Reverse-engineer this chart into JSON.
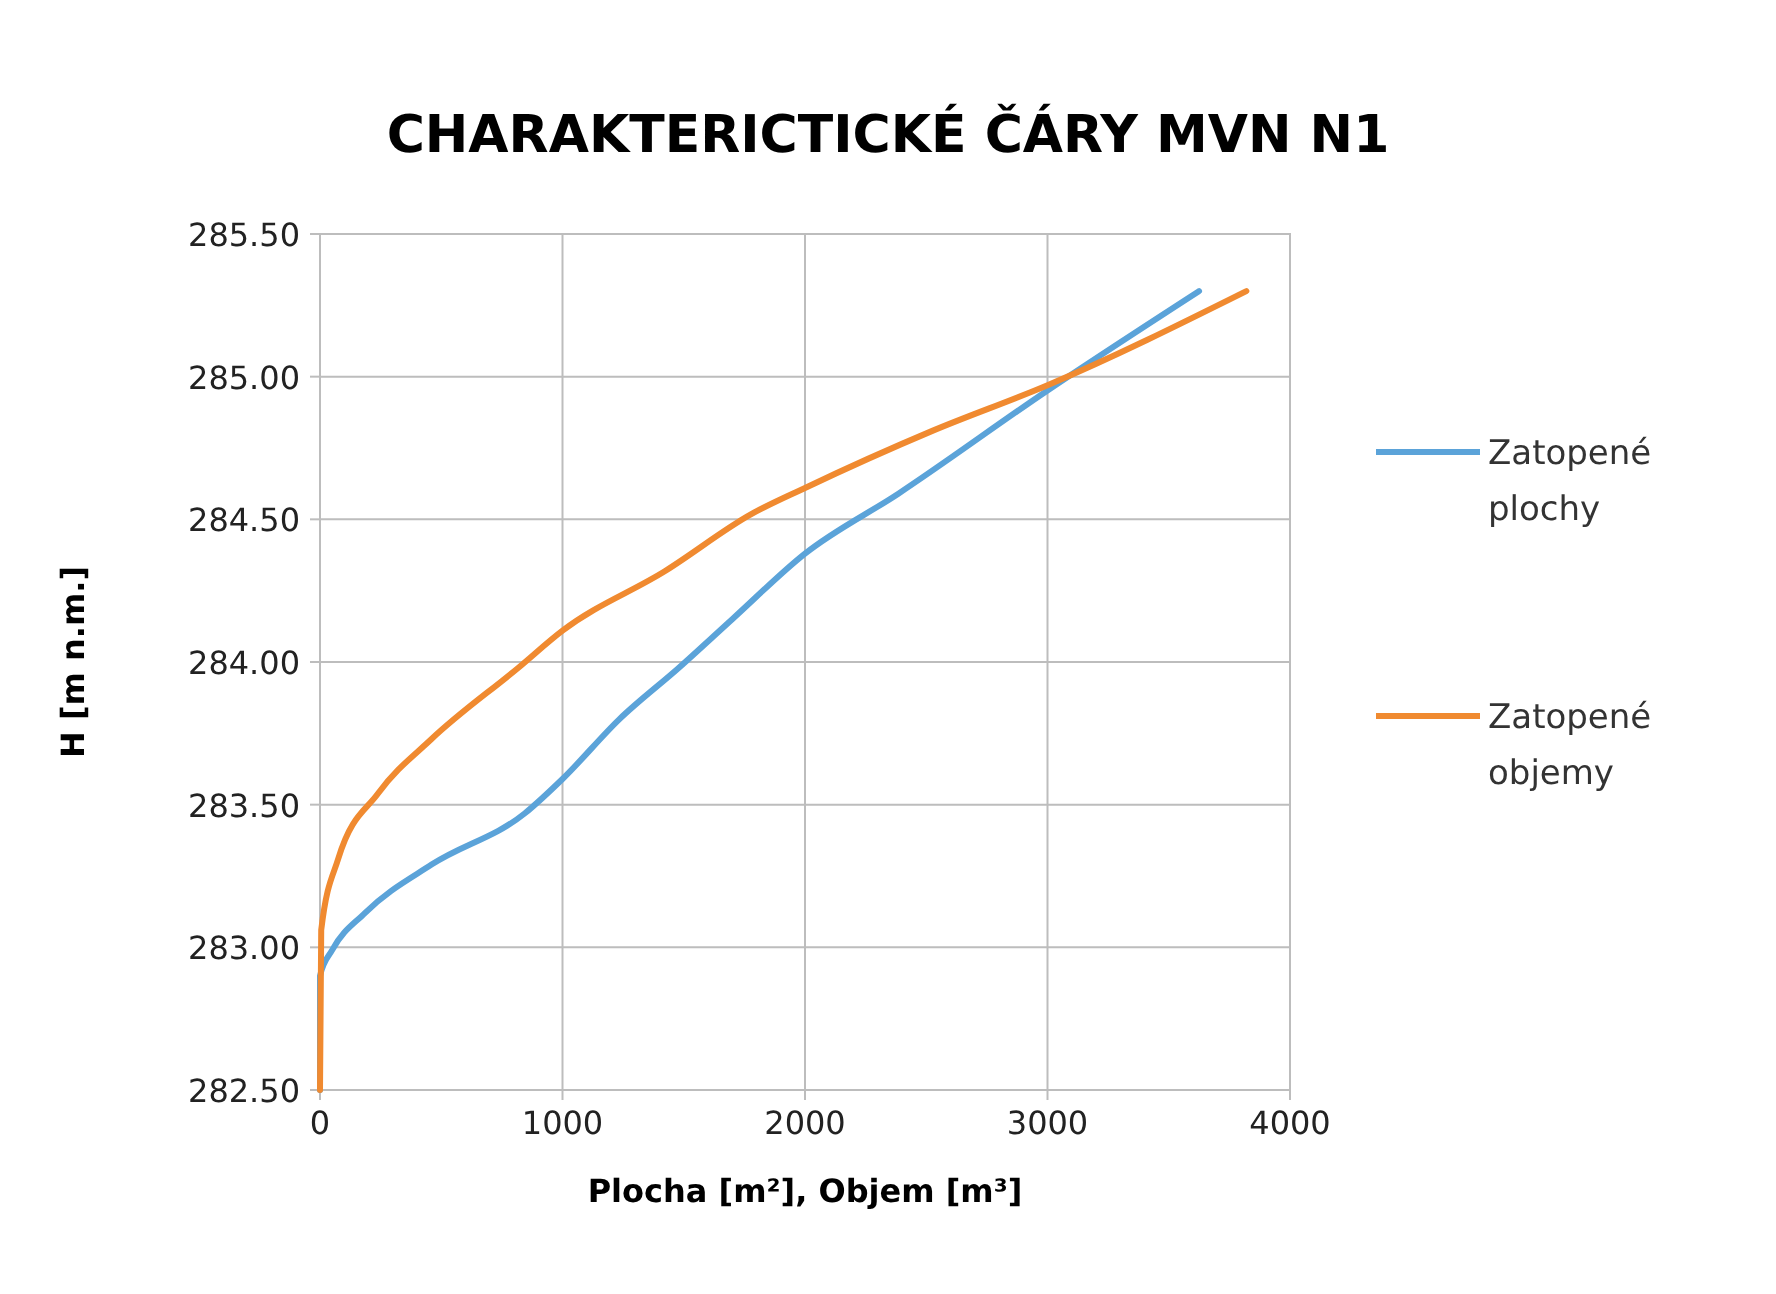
{
  "chart_data": {
    "type": "line",
    "title": "CHARAKTERICTICKÉ ČÁRY MVN N1",
    "xlabel": "Plocha [m²], Objem [m³]",
    "ylabel": "H [m n.m.]",
    "xlim": [
      0,
      4000
    ],
    "xticks": [
      0,
      1000,
      2000,
      3000,
      4000
    ],
    "ylim": [
      282.5,
      285.5
    ],
    "yticks": [
      {
        "value": 282.5,
        "label": "282.50"
      },
      {
        "value": 283,
        "label": "283.00"
      },
      {
        "value": 283.5,
        "label": "283.50"
      },
      {
        "value": 284,
        "label": "284.00"
      },
      {
        "value": 284.5,
        "label": "284.50"
      },
      {
        "value": 285,
        "label": "285.00"
      },
      {
        "value": 285.5,
        "label": "285.50"
      }
    ],
    "grid": true,
    "legend": "right",
    "marker": "none",
    "line_style": "solid",
    "series": [
      {
        "name": "Zatopené plochy",
        "color": "#5ba3d9",
        "x": [
          0,
          0,
          50,
          185,
          460,
          845,
          1000,
          1235,
          1480,
          1700,
          2000,
          2385,
          2997,
          3625
        ],
        "values": [
          282.5,
          282.9,
          282.99,
          283.12,
          283.29,
          283.47,
          283.59,
          283.8,
          283.98,
          284.15,
          284.38,
          284.59,
          284.95,
          285.3
        ]
      },
      {
        "name": "Zatopené objemy",
        "color": "#f08a30",
        "x": [
          0,
          5,
          75,
          240,
          460,
          818,
          1000,
          1425,
          1782,
          2000,
          2525,
          3000,
          3820
        ],
        "values": [
          282.5,
          283.06,
          283.31,
          283.54,
          283.73,
          283.98,
          284.11,
          284.32,
          284.52,
          284.61,
          284.81,
          284.97,
          285.3
        ]
      }
    ]
  }
}
